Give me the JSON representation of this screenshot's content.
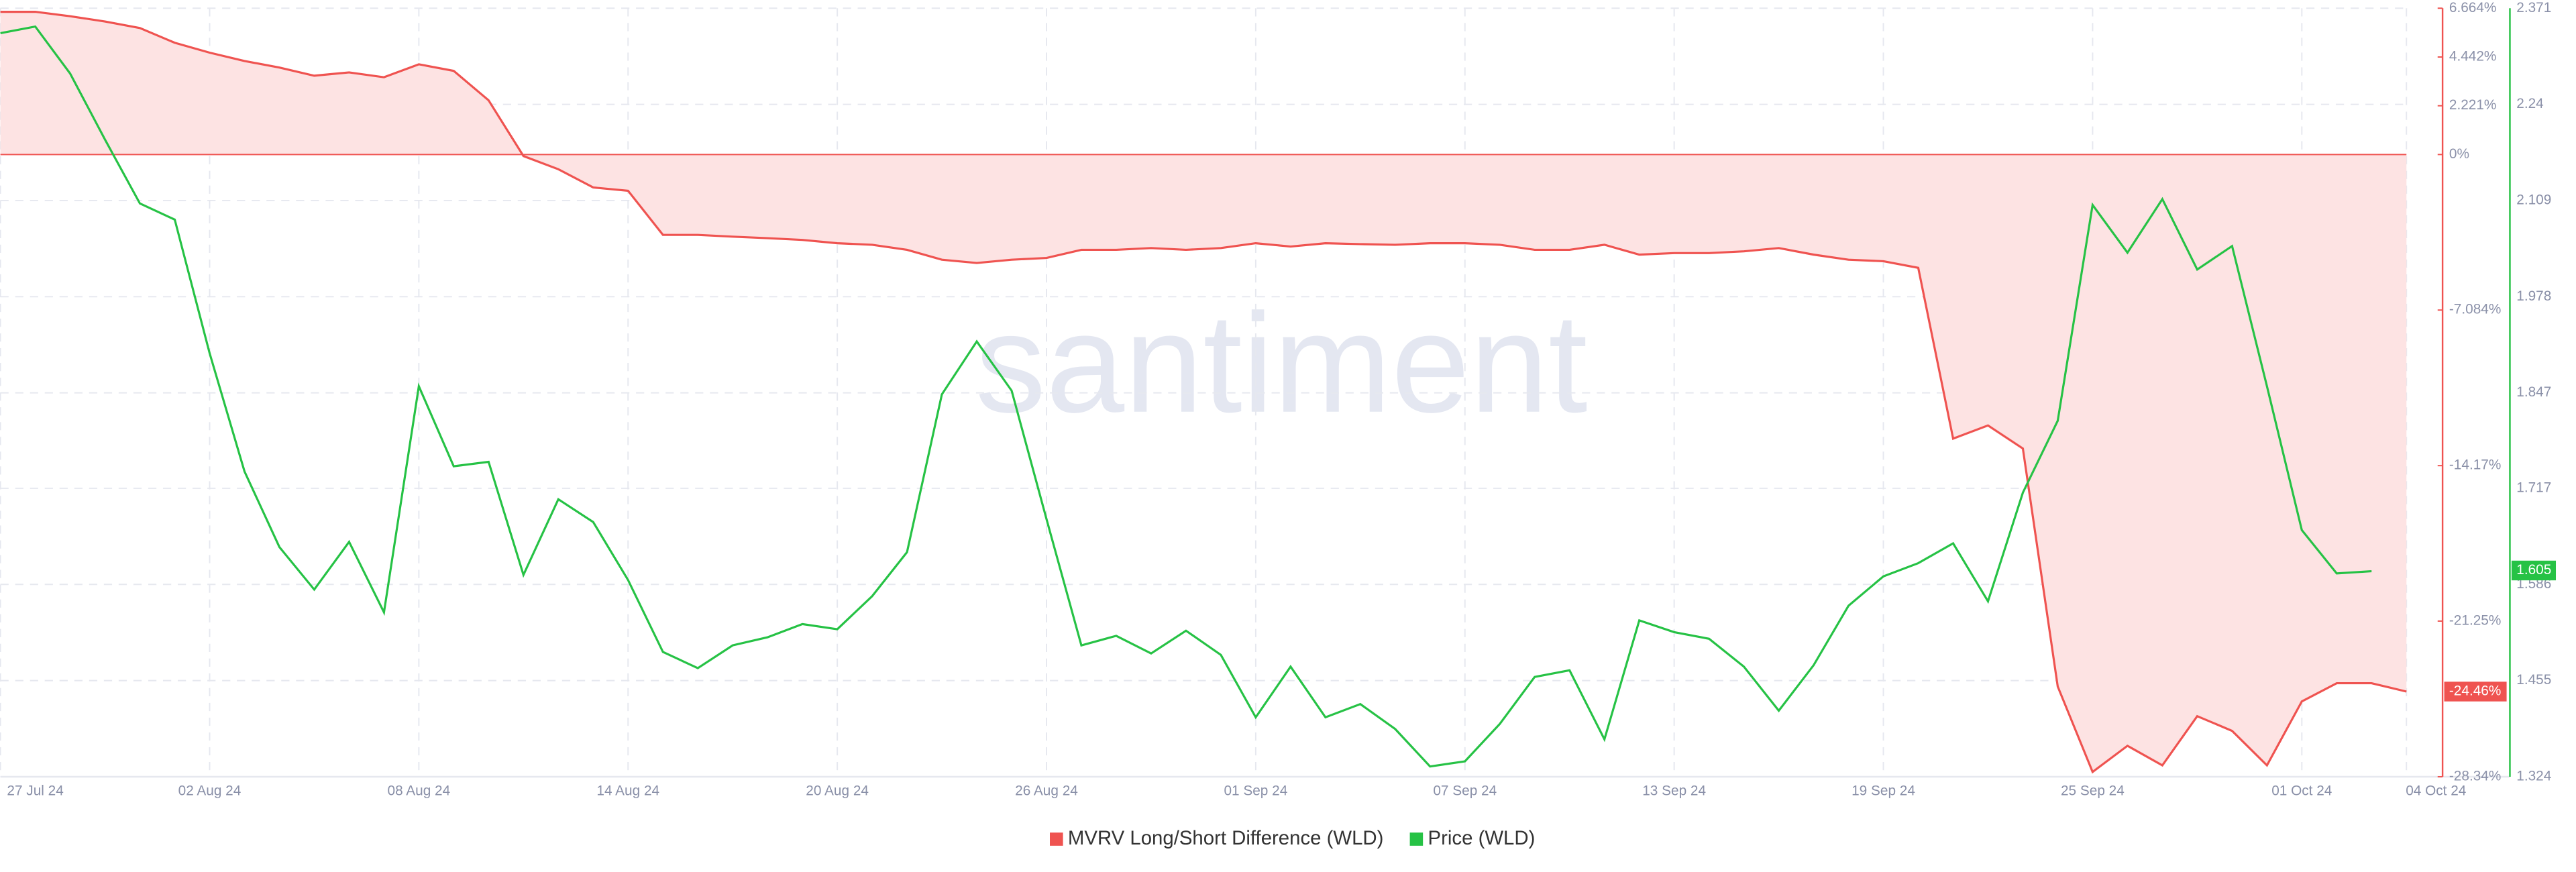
{
  "chart_data": {
    "type": "line",
    "watermark": "santiment",
    "categories": [
      "27 Jul 24",
      null,
      null,
      null,
      null,
      null,
      "02 Aug 24",
      null,
      null,
      null,
      null,
      null,
      "08 Aug 24",
      null,
      null,
      null,
      null,
      null,
      "14 Aug 24",
      null,
      null,
      null,
      null,
      null,
      "20 Aug 24",
      null,
      null,
      null,
      null,
      null,
      "26 Aug 24",
      null,
      null,
      null,
      null,
      null,
      "01 Sep 24",
      null,
      null,
      null,
      null,
      null,
      "07 Sep 24",
      null,
      null,
      null,
      null,
      null,
      "13 Sep 24",
      null,
      null,
      null,
      null,
      null,
      "19 Sep 24",
      null,
      null,
      null,
      null,
      null,
      "25 Sep 24",
      null,
      null,
      null,
      null,
      null,
      "01 Oct 24",
      null,
      null,
      "04 Oct 24"
    ],
    "series": [
      {
        "name": "MVRV Long/Short Difference (WLD)",
        "color": "#ef5350",
        "fill": "#fde3e3",
        "axis": "y",
        "values": [
          6.5,
          6.5,
          6.3,
          6.06,
          5.76,
          5.09,
          4.64,
          4.26,
          3.96,
          3.59,
          3.74,
          3.52,
          4.11,
          3.81,
          2.47,
          -0.07,
          -0.67,
          -1.5,
          -1.65,
          -3.66,
          -3.66,
          -3.74,
          -3.81,
          -3.89,
          -4.04,
          -4.11,
          -4.34,
          -4.79,
          -4.94,
          -4.79,
          -4.71,
          -4.34,
          -4.34,
          -4.26,
          -4.34,
          -4.26,
          -4.04,
          -4.19,
          -4.04,
          -4.08,
          -4.11,
          -4.04,
          -4.04,
          -4.11,
          -4.34,
          -4.34,
          -4.11,
          -4.56,
          -4.49,
          -4.49,
          -4.41,
          -4.26,
          -4.56,
          -4.79,
          -4.86,
          -5.16,
          -12.94,
          -12.34,
          -13.39,
          -24.23,
          -28.12,
          -26.93,
          -27.82,
          -25.58,
          -26.25,
          -27.82,
          -24.91,
          -24.08,
          -24.08,
          -24.46
        ],
        "last": {
          "value": -24.46,
          "label": "-24.46%"
        }
      },
      {
        "name": "Price (WLD)",
        "color": "#26c245",
        "axis": "y2",
        "values": [
          2.337,
          2.346,
          2.282,
          2.192,
          2.105,
          2.083,
          1.901,
          1.74,
          1.637,
          1.579,
          1.644,
          1.548,
          1.856,
          1.747,
          1.753,
          1.599,
          1.702,
          1.671,
          1.592,
          1.494,
          1.472,
          1.503,
          1.514,
          1.532,
          1.525,
          1.57,
          1.63,
          1.845,
          1.917,
          1.85,
          1.675,
          1.503,
          1.516,
          1.492,
          1.523,
          1.49,
          1.405,
          1.474,
          1.405,
          1.423,
          1.389,
          1.338,
          1.345,
          1.396,
          1.46,
          1.469,
          1.375,
          1.537,
          1.521,
          1.512,
          1.474,
          1.414,
          1.476,
          1.557,
          1.597,
          1.615,
          1.642,
          1.563,
          1.711,
          1.809,
          2.103,
          2.038,
          2.111,
          2.015,
          2.047,
          1.856,
          1.66,
          1.601,
          1.604,
          null
        ],
        "last": 1.605
      }
    ],
    "ylim": [
      -28.34,
      6.664
    ],
    "yticks": [
      {
        "value": 6.664,
        "label": "6.664%"
      },
      {
        "value": 4.442,
        "label": "4.442%"
      },
      {
        "value": 2.221,
        "label": "2.221%"
      },
      {
        "value": 0,
        "label": "0%"
      },
      {
        "value": -7.084,
        "label": "-7.084%"
      },
      {
        "value": -14.17,
        "label": "-14.17%"
      },
      {
        "value": -21.25,
        "label": "-21.25%"
      },
      {
        "value": -28.34,
        "label": "-28.34%"
      }
    ],
    "y2lim": [
      1.324,
      2.371
    ],
    "y2ticks": [
      2.371,
      2.24,
      2.109,
      1.978,
      1.847,
      1.717,
      1.586,
      1.455,
      1.324
    ],
    "grid": true,
    "legend": "bottom"
  }
}
